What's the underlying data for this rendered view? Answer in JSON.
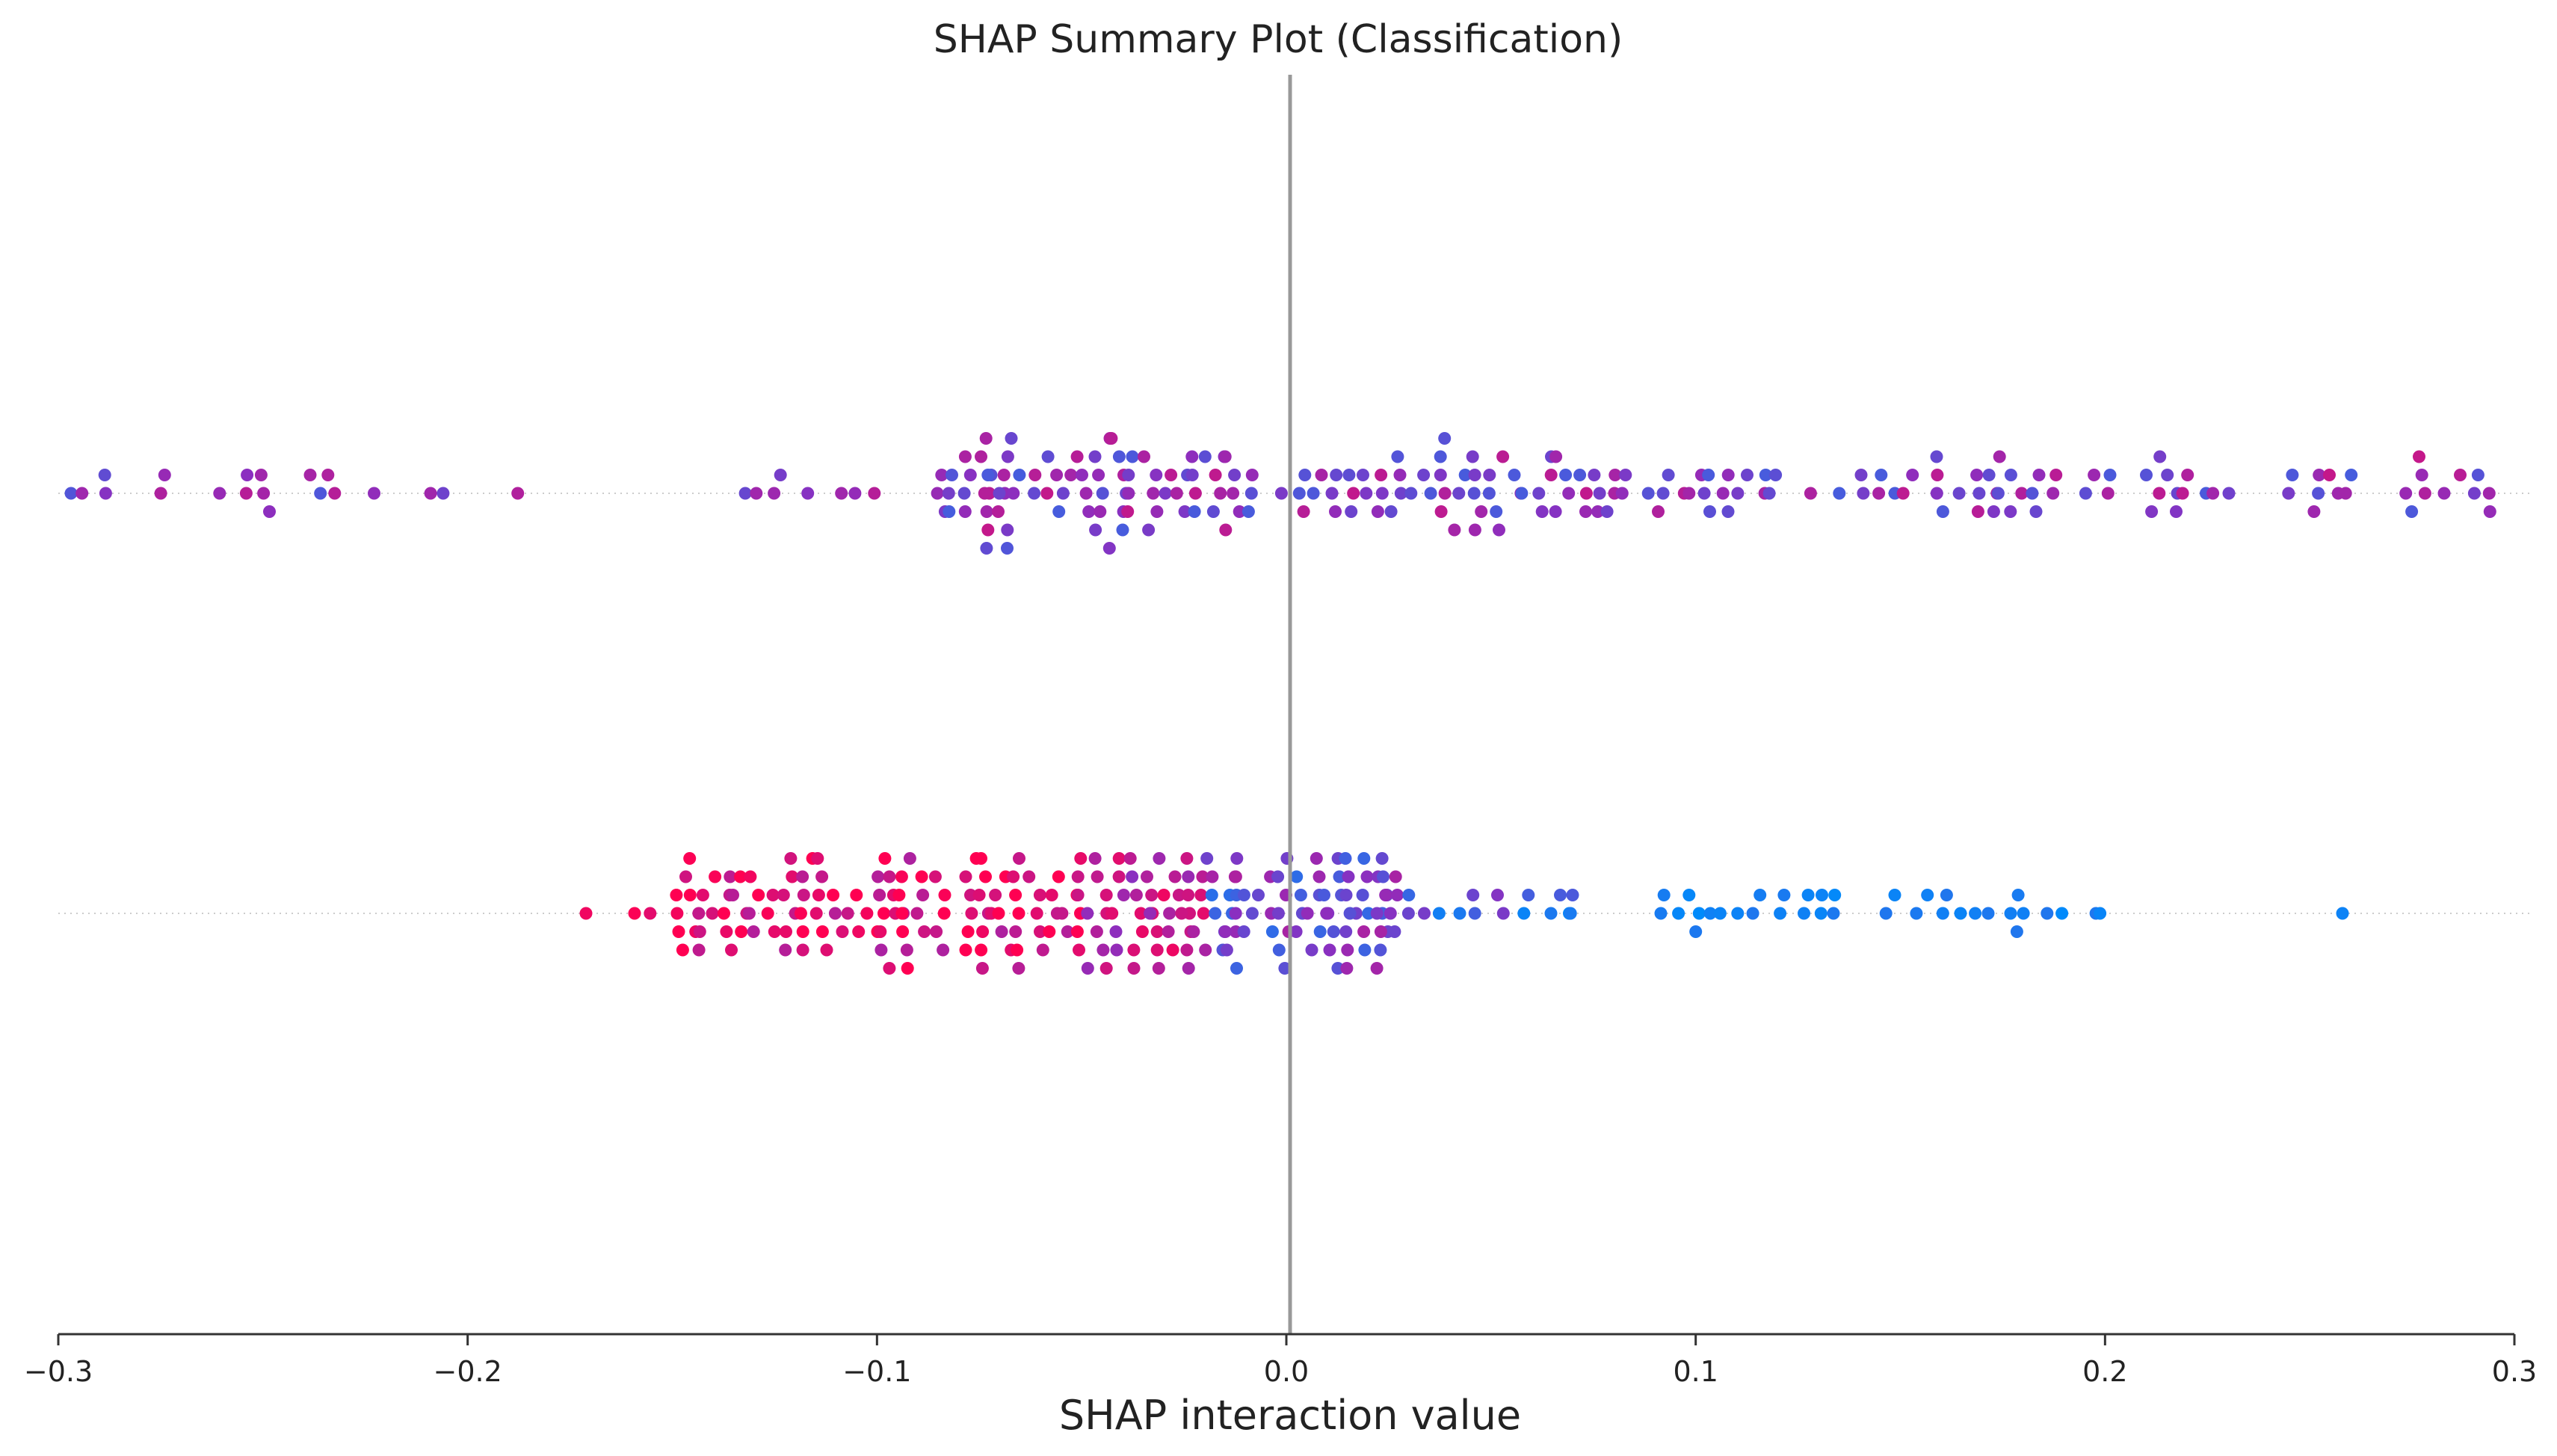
{
  "chart_data": {
    "type": "scatter",
    "subtype": "shap-beeswarm",
    "title": "SHAP Summary Plot (Classification)",
    "xlabel": "SHAP interaction value",
    "ylabel": "",
    "xlim": [
      -0.3,
      0.3
    ],
    "xticks": [
      -0.3,
      -0.2,
      -0.1,
      0.0,
      0.1,
      0.2,
      0.3
    ],
    "xtick_labels": [
      "−0.3",
      "−0.2",
      "−0.1",
      "0.0",
      "0.1",
      "0.2",
      "0.3"
    ],
    "zero_line": 0.0,
    "grid": false,
    "legend": "none",
    "colors": {
      "low": "#008bfb",
      "mid": "#8b2fc0",
      "high": "#ff0052",
      "zero_line": "#999999",
      "axis": "#333333"
    },
    "rows": [
      {
        "seed": 7,
        "segments": [
          {
            "n": 20,
            "lo": -0.3,
            "hi": -0.18,
            "bias": 0.5
          },
          {
            "n": 8,
            "lo": -0.135,
            "hi": -0.095,
            "bias": 0.5
          },
          {
            "n": 72,
            "lo": -0.09,
            "hi": -0.02,
            "bias": 0.5
          },
          {
            "n": 58,
            "lo": -0.02,
            "hi": 0.06,
            "bias": 0.5
          },
          {
            "n": 40,
            "lo": 0.06,
            "hi": 0.14,
            "bias": 0.5
          },
          {
            "n": 40,
            "lo": 0.14,
            "hi": 0.22,
            "bias": 0.5
          },
          {
            "n": 24,
            "lo": 0.22,
            "hi": 0.3,
            "bias": 0.5
          }
        ]
      },
      {
        "seed": 13,
        "segments": [
          {
            "n": 3,
            "lo": -0.175,
            "hi": -0.155,
            "bias": 0.95
          },
          {
            "n": 55,
            "lo": -0.15,
            "hi": -0.1,
            "bias": 0.92
          },
          {
            "n": 72,
            "lo": -0.1,
            "hi": -0.05,
            "bias": 0.88
          },
          {
            "n": 48,
            "lo": -0.05,
            "hi": -0.02,
            "bias": 0.72
          },
          {
            "n": 82,
            "lo": -0.02,
            "hi": 0.03,
            "bias": 0.4
          },
          {
            "n": 14,
            "lo": 0.03,
            "hi": 0.07,
            "bias": 0.25
          },
          {
            "n": 36,
            "lo": 0.09,
            "hi": 0.215,
            "bias": 0.0
          },
          {
            "n": 1,
            "lo": 0.258,
            "hi": 0.258,
            "bias": 0.0
          }
        ]
      }
    ]
  }
}
